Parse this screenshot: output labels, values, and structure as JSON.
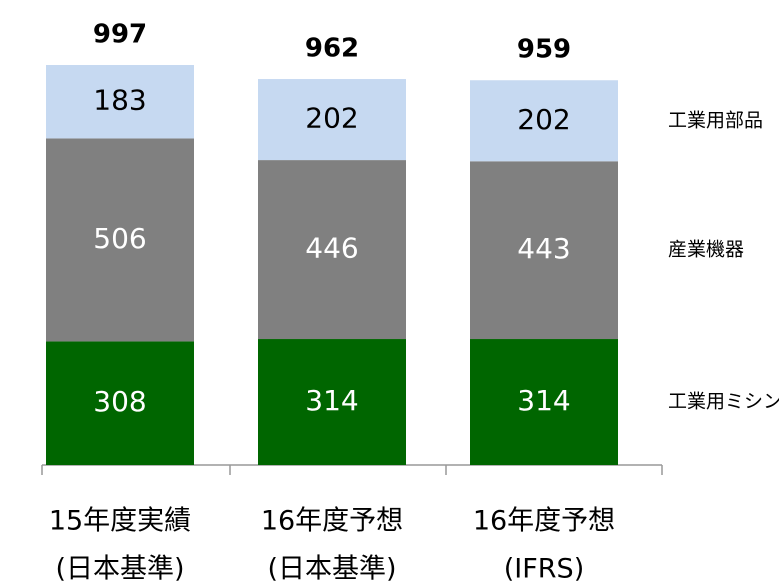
{
  "chart_data": {
    "type": "stacked_bar",
    "categories": [
      [
        "15年度実績",
        "(日本基準)"
      ],
      [
        "16年度予想",
        "(日本基準)"
      ],
      [
        "16年度予想",
        "(IFRS)"
      ]
    ],
    "series": [
      {
        "name": "工業用ミシン",
        "color": "#006600",
        "label_color": "#ffffff",
        "values": [
          308,
          314,
          314
        ]
      },
      {
        "name": "産業機器",
        "color": "#808080",
        "label_color": "#ffffff",
        "values": [
          506,
          446,
          443
        ]
      },
      {
        "name": "工業用部品",
        "color": "#c6d9f1",
        "label_color": "#000000",
        "values": [
          183,
          202,
          202
        ]
      }
    ],
    "totals": [
      997,
      962,
      959
    ]
  }
}
